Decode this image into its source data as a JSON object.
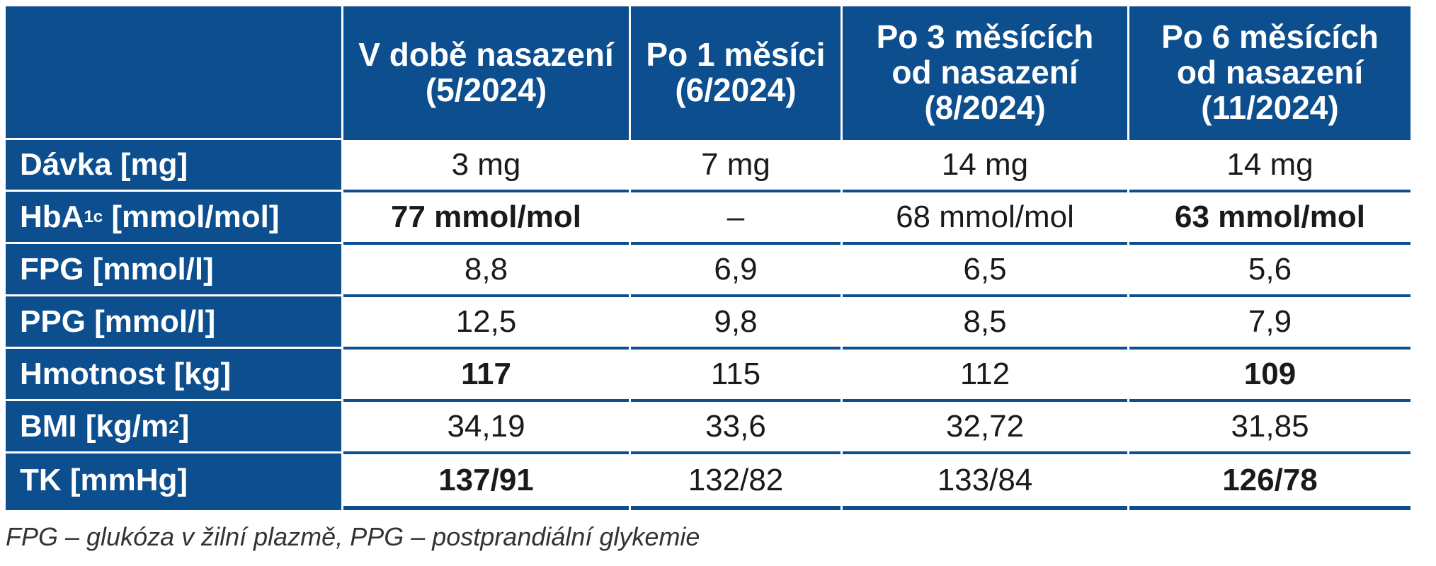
{
  "columns": [
    "",
    "V době nasazení (5/2024)",
    "Po 1 měsíci (6/2024)",
    "Po 3 měsících od nasazení (8/2024)",
    "Po 6 měsících od nasazení (11/2024)"
  ],
  "header_lines": [
    [],
    [
      "V době nasazení",
      "(5/2024)"
    ],
    [
      "Po 1 měsíci",
      "(6/2024)"
    ],
    [
      "Po 3 měsících",
      "od nasazení",
      "(8/2024)"
    ],
    [
      "Po 6 měsících",
      "od nasazení",
      "(11/2024)"
    ]
  ],
  "rows": [
    {
      "label": "Dávka [mg]",
      "values": [
        "3 mg",
        "7 mg",
        "14 mg",
        "14 mg"
      ],
      "bold": [
        false,
        false,
        false,
        false
      ]
    },
    {
      "label_pre": "HbA",
      "label_sub": "1c",
      "label_post": " [mmol/mol]",
      "values": [
        "77 mmol/mol",
        "–",
        "68 mmol/mol",
        "63 mmol/mol"
      ],
      "bold": [
        true,
        false,
        false,
        true
      ]
    },
    {
      "label": "FPG [mmol/l]",
      "values": [
        "8,8",
        "6,9",
        "6,5",
        "5,6"
      ],
      "bold": [
        false,
        false,
        false,
        false
      ]
    },
    {
      "label": "PPG [mmol/l]",
      "values": [
        "12,5",
        "9,8",
        "8,5",
        "7,9"
      ],
      "bold": [
        false,
        false,
        false,
        false
      ]
    },
    {
      "label": "Hmotnost [kg]",
      "values": [
        "117",
        "115",
        "112",
        "109"
      ],
      "bold": [
        true,
        false,
        false,
        true
      ]
    },
    {
      "label_pre": "BMI [kg/m",
      "label_sup": "2",
      "label_post": "]",
      "values": [
        "34,19",
        "33,6",
        "32,72",
        "31,85"
      ],
      "bold": [
        false,
        false,
        false,
        false
      ]
    },
    {
      "label": "TK [mmHg]",
      "values": [
        "137/91",
        "132/82",
        "133/84",
        "126/78"
      ],
      "bold": [
        true,
        false,
        false,
        true
      ]
    }
  ],
  "footnote": "FPG – glukóza v žilní plazmě, PPG – postprandiální glykemie",
  "colors": {
    "header_bg": "#0c4e8e",
    "cell_bg": "#ffffff",
    "text": "#1a1a1a"
  }
}
